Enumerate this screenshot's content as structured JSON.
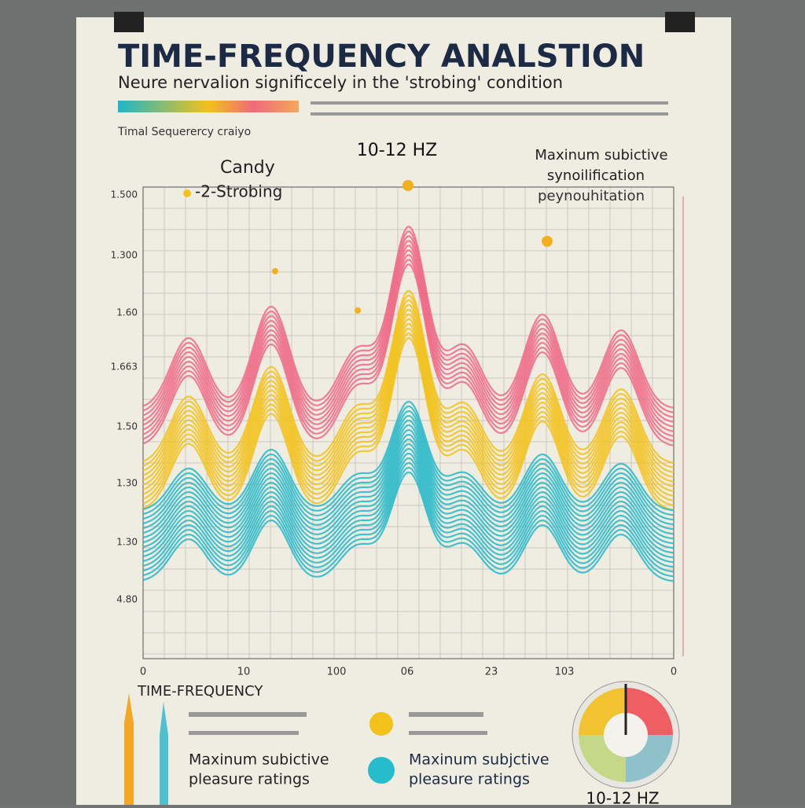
{
  "header": {
    "title": "TIME-FREQUENCY ANALSTION",
    "subtitle": "Neure nervalion significcely in the 'strobing' condition",
    "caption": "Timal Sequerercy craiyo"
  },
  "chart": {
    "annotations": [
      "Candy",
      "-2-Strobing",
      "10-12 HZ",
      "Maxinum subictive",
      "synoilification",
      "peynouhitation"
    ],
    "y_labels": [
      "1.500",
      "1.300",
      "1.60",
      "1.663",
      "1.50",
      "1.30",
      "1.30",
      "4.80"
    ],
    "x_labels": [
      "0",
      "10",
      "100",
      "06",
      "23",
      "103",
      "0"
    ]
  },
  "legend": {
    "heading": "TIME-FREQUENCY",
    "items": [
      [
        "Maxinum subictive",
        "pleasure ratings"
      ],
      [
        "Maxinum subjctive",
        "pleasure ratings"
      ]
    ]
  },
  "gauge": {
    "label": "10-12 HZ"
  }
}
